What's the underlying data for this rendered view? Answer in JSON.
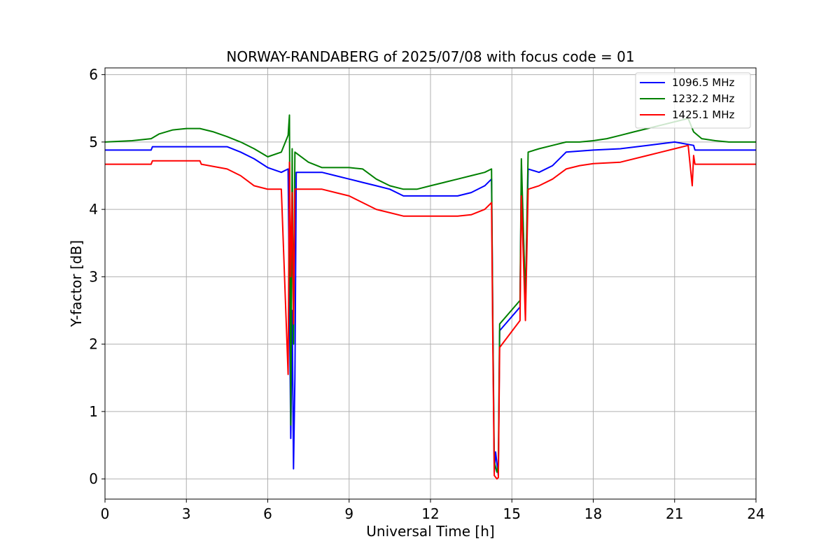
{
  "chart_data": {
    "type": "line",
    "title": "NORWAY-RANDABERG of 2025/07/08 with focus code = 01",
    "xlabel": "Universal Time [h]",
    "ylabel": "Y-factor [dB]",
    "xlim": [
      0,
      24
    ],
    "ylim": [
      -0.3,
      6.1
    ],
    "xticks": [
      0,
      3,
      6,
      9,
      12,
      15,
      18,
      21,
      24
    ],
    "yticks": [
      0,
      1,
      2,
      3,
      4,
      5,
      6
    ],
    "grid": true,
    "legend_position": "top-right",
    "series": [
      {
        "name": "1096.5 MHz",
        "color": "#0000ff",
        "x": [
          0,
          1.7,
          1.75,
          4.5,
          5.0,
          5.5,
          6.0,
          6.5,
          6.75,
          6.85,
          6.9,
          6.95,
          7.0,
          7.05,
          7.1,
          8.0,
          8.5,
          9.0,
          9.5,
          10.0,
          10.5,
          11.0,
          12.0,
          13.0,
          13.5,
          14.0,
          14.25,
          14.3,
          14.35,
          14.4,
          14.5,
          14.55,
          15.3,
          15.35,
          15.5,
          15.6,
          16.0,
          16.5,
          17.0,
          18.0,
          19.0,
          20.0,
          21.0,
          21.7,
          21.75,
          22.0,
          23.0,
          24.0
        ],
        "y": [
          4.88,
          4.88,
          4.93,
          4.93,
          4.85,
          4.75,
          4.62,
          4.55,
          4.6,
          0.6,
          2.5,
          0.15,
          1.5,
          4.55,
          4.55,
          4.55,
          4.5,
          4.45,
          4.4,
          4.35,
          4.3,
          4.2,
          4.2,
          4.2,
          4.25,
          4.35,
          4.45,
          2.2,
          0.1,
          0.4,
          0.05,
          2.2,
          2.55,
          4.6,
          2.6,
          4.6,
          4.55,
          4.65,
          4.85,
          4.88,
          4.9,
          4.95,
          5.0,
          4.95,
          4.88,
          4.88,
          4.88,
          4.88
        ]
      },
      {
        "name": "1232.2 MHz",
        "color": "#008000",
        "x": [
          0,
          1.0,
          1.7,
          2.0,
          2.5,
          3.0,
          3.5,
          4.0,
          4.5,
          5.0,
          5.5,
          6.0,
          6.5,
          6.75,
          6.8,
          6.85,
          6.9,
          6.95,
          7.0,
          7.5,
          8.0,
          8.5,
          9.0,
          9.5,
          10.0,
          10.5,
          11.0,
          11.5,
          12.0,
          12.5,
          13.0,
          13.5,
          14.0,
          14.25,
          14.3,
          14.35,
          14.45,
          14.5,
          14.55,
          15.3,
          15.35,
          15.5,
          15.6,
          16.0,
          16.5,
          17.0,
          17.5,
          18.0,
          18.5,
          19.0,
          19.5,
          20.0,
          20.5,
          21.0,
          21.5,
          21.7,
          22.0,
          22.5,
          23.0,
          24.0
        ],
        "y": [
          5.0,
          5.02,
          5.05,
          5.12,
          5.18,
          5.2,
          5.2,
          5.15,
          5.08,
          5.0,
          4.9,
          4.78,
          4.85,
          5.1,
          5.4,
          0.8,
          4.9,
          2.0,
          4.85,
          4.7,
          4.62,
          4.62,
          4.62,
          4.6,
          4.45,
          4.35,
          4.3,
          4.3,
          4.35,
          4.4,
          4.45,
          4.5,
          4.55,
          4.6,
          2.25,
          0.25,
          0.1,
          0.2,
          2.3,
          2.65,
          4.75,
          2.65,
          4.85,
          4.9,
          4.95,
          5.0,
          5.0,
          5.02,
          5.05,
          5.1,
          5.15,
          5.2,
          5.25,
          5.3,
          5.35,
          5.15,
          5.05,
          5.02,
          5.0,
          5.0
        ]
      },
      {
        "name": "1425.1 MHz",
        "color": "#ff0000",
        "x": [
          0,
          1.7,
          1.75,
          3.5,
          3.55,
          4.5,
          5.0,
          5.5,
          6.0,
          6.5,
          6.75,
          6.8,
          6.85,
          6.9,
          6.95,
          7.0,
          7.05,
          8.0,
          8.5,
          9.0,
          9.5,
          10.0,
          10.5,
          11.0,
          12.0,
          13.0,
          13.5,
          14.0,
          14.25,
          14.3,
          14.35,
          14.45,
          14.5,
          14.55,
          15.3,
          15.35,
          15.5,
          15.6,
          16.0,
          16.5,
          17.0,
          17.5,
          18.0,
          19.0,
          20.0,
          20.5,
          21.0,
          21.5,
          21.65,
          21.7,
          21.75,
          22.0,
          23.0,
          24.0
        ],
        "y": [
          4.67,
          4.67,
          4.72,
          4.72,
          4.67,
          4.6,
          4.5,
          4.35,
          4.3,
          4.3,
          1.55,
          4.7,
          3.0,
          4.25,
          2.3,
          4.3,
          4.3,
          4.3,
          4.25,
          4.2,
          4.1,
          4.0,
          3.95,
          3.9,
          3.9,
          3.9,
          3.92,
          4.0,
          4.1,
          1.95,
          0.05,
          0.0,
          0.02,
          1.95,
          2.35,
          4.2,
          2.35,
          4.3,
          4.35,
          4.45,
          4.6,
          4.65,
          4.68,
          4.7,
          4.8,
          4.85,
          4.9,
          4.95,
          4.35,
          4.8,
          4.67,
          4.67,
          4.67,
          4.67
        ]
      }
    ]
  }
}
